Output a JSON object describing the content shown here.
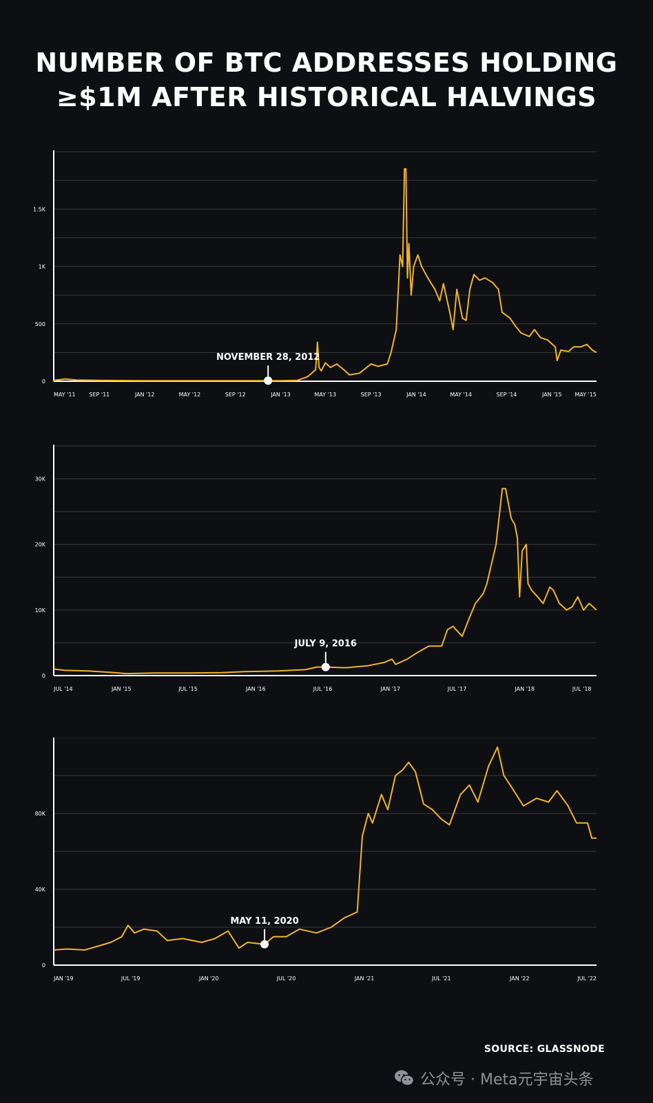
{
  "title": {
    "line1": "NUMBER OF BTC ADDRESSES HOLDING",
    "line2": "≥$1M AFTER HISTORICAL HALVINGS"
  },
  "source": "SOURCE: GLASSNODE",
  "watermark": {
    "icon": "wechat-icon",
    "text": "公众号 · Meta元宇宙头条"
  },
  "colors": {
    "series": "#f0b52b",
    "background": "#0e0f12",
    "grid": "#3a3b3f",
    "axis": "#ffffff"
  },
  "chart_data": [
    {
      "type": "line",
      "xlim": [
        "2011-05-01",
        "2015-05-01"
      ],
      "ylim": [
        0,
        2000
      ],
      "grid": true,
      "yticks": [
        {
          "value": 0,
          "label": "0"
        },
        {
          "value": 250,
          "label": ""
        },
        {
          "value": 500,
          "label": "500"
        },
        {
          "value": 750,
          "label": ""
        },
        {
          "value": 1000,
          "label": "1K"
        },
        {
          "value": 1250,
          "label": ""
        },
        {
          "value": 1500,
          "label": "1.5K"
        },
        {
          "value": 1750,
          "label": ""
        },
        {
          "value": 2000,
          "label": ""
        }
      ],
      "xticks": [
        {
          "date": "2011-05-01",
          "label": "MAY '11"
        },
        {
          "date": "2011-09-01",
          "label": "SEP '11"
        },
        {
          "date": "2012-01-01",
          "label": "JAN '12"
        },
        {
          "date": "2012-05-01",
          "label": "MAY '12"
        },
        {
          "date": "2012-09-01",
          "label": "SEP '12"
        },
        {
          "date": "2013-01-01",
          "label": "JAN '13"
        },
        {
          "date": "2013-05-01",
          "label": "MAY '13"
        },
        {
          "date": "2013-09-01",
          "label": "SEP '13"
        },
        {
          "date": "2014-01-01",
          "label": "JAN '14"
        },
        {
          "date": "2014-05-01",
          "label": "MAY '14"
        },
        {
          "date": "2014-09-01",
          "label": "SEP '14"
        },
        {
          "date": "2015-01-01",
          "label": "JAN '15"
        },
        {
          "date": "2015-05-01",
          "label": "MAY '15"
        }
      ],
      "annotation": {
        "date": "2012-11-28",
        "value": 5,
        "label": "NOVEMBER 28, 2012"
      },
      "series": [
        {
          "points": [
            [
              "2011-05-01",
              8
            ],
            [
              "2011-06-01",
              20
            ],
            [
              "2011-07-01",
              10
            ],
            [
              "2011-09-01",
              8
            ],
            [
              "2012-01-01",
              5
            ],
            [
              "2012-06-01",
              5
            ],
            [
              "2012-11-28",
              5
            ],
            [
              "2013-01-01",
              5
            ],
            [
              "2013-02-15",
              8
            ],
            [
              "2013-03-15",
              40
            ],
            [
              "2013-04-05",
              100
            ],
            [
              "2013-04-10",
              340
            ],
            [
              "2013-04-14",
              120
            ],
            [
              "2013-04-20",
              90
            ],
            [
              "2013-05-01",
              160
            ],
            [
              "2013-05-15",
              120
            ],
            [
              "2013-06-01",
              150
            ],
            [
              "2013-06-20",
              100
            ],
            [
              "2013-07-05",
              55
            ],
            [
              "2013-08-01",
              70
            ],
            [
              "2013-09-01",
              150
            ],
            [
              "2013-09-20",
              130
            ],
            [
              "2013-10-15",
              150
            ],
            [
              "2013-10-25",
              250
            ],
            [
              "2013-11-08",
              450
            ],
            [
              "2013-11-18",
              1100
            ],
            [
              "2013-11-25",
              1000
            ],
            [
              "2013-11-30",
              1850
            ],
            [
              "2013-12-04",
              1850
            ],
            [
              "2013-12-08",
              900
            ],
            [
              "2013-12-12",
              1200
            ],
            [
              "2013-12-18",
              750
            ],
            [
              "2013-12-25",
              1000
            ],
            [
              "2014-01-05",
              1100
            ],
            [
              "2014-01-15",
              1000
            ],
            [
              "2014-02-01",
              900
            ],
            [
              "2014-02-20",
              800
            ],
            [
              "2014-03-05",
              700
            ],
            [
              "2014-03-15",
              850
            ],
            [
              "2014-04-01",
              600
            ],
            [
              "2014-04-10",
              450
            ],
            [
              "2014-04-20",
              800
            ],
            [
              "2014-05-05",
              550
            ],
            [
              "2014-05-15",
              530
            ],
            [
              "2014-05-25",
              800
            ],
            [
              "2014-06-05",
              930
            ],
            [
              "2014-06-20",
              880
            ],
            [
              "2014-07-05",
              900
            ],
            [
              "2014-07-25",
              860
            ],
            [
              "2014-08-10",
              800
            ],
            [
              "2014-08-20",
              600
            ],
            [
              "2014-09-10",
              550
            ],
            [
              "2014-09-25",
              480
            ],
            [
              "2014-10-10",
              420
            ],
            [
              "2014-11-01",
              390
            ],
            [
              "2014-11-15",
              450
            ],
            [
              "2014-12-01",
              380
            ],
            [
              "2014-12-20",
              360
            ],
            [
              "2015-01-10",
              300
            ],
            [
              "2015-01-15",
              180
            ],
            [
              "2015-01-25",
              270
            ],
            [
              "2015-02-15",
              260
            ],
            [
              "2015-03-01",
              300
            ],
            [
              "2015-03-20",
              300
            ],
            [
              "2015-04-05",
              320
            ],
            [
              "2015-04-20",
              270
            ],
            [
              "2015-05-01",
              250
            ]
          ]
        }
      ]
    },
    {
      "type": "line",
      "xlim": [
        "2014-07-01",
        "2018-07-15"
      ],
      "ylim": [
        0,
        35000
      ],
      "grid": true,
      "yticks": [
        {
          "value": 0,
          "label": "0"
        },
        {
          "value": 5000,
          "label": ""
        },
        {
          "value": 10000,
          "label": "10K"
        },
        {
          "value": 15000,
          "label": ""
        },
        {
          "value": 20000,
          "label": "20K"
        },
        {
          "value": 25000,
          "label": ""
        },
        {
          "value": 30000,
          "label": "30K"
        },
        {
          "value": 35000,
          "label": ""
        }
      ],
      "xticks": [
        {
          "date": "2014-07-01",
          "label": "JUL '14"
        },
        {
          "date": "2015-01-01",
          "label": "JAN '15"
        },
        {
          "date": "2015-07-01",
          "label": "JUL '15"
        },
        {
          "date": "2016-01-01",
          "label": "JAN '16"
        },
        {
          "date": "2016-07-01",
          "label": "JUL '16"
        },
        {
          "date": "2017-01-01",
          "label": "JAN '17"
        },
        {
          "date": "2017-07-01",
          "label": "JUL '17"
        },
        {
          "date": "2018-01-01",
          "label": "JAN '18"
        },
        {
          "date": "2018-07-01",
          "label": "JUL '18"
        }
      ],
      "annotation": {
        "date": "2016-07-09",
        "value": 1300,
        "label": "JULY 9, 2016"
      },
      "series": [
        {
          "points": [
            [
              "2014-07-01",
              1000
            ],
            [
              "2014-08-01",
              800
            ],
            [
              "2014-10-01",
              700
            ],
            [
              "2014-12-01",
              500
            ],
            [
              "2015-01-15",
              300
            ],
            [
              "2015-04-01",
              400
            ],
            [
              "2015-07-01",
              400
            ],
            [
              "2015-10-01",
              450
            ],
            [
              "2015-12-01",
              600
            ],
            [
              "2016-03-01",
              700
            ],
            [
              "2016-05-15",
              900
            ],
            [
              "2016-06-15",
              1300
            ],
            [
              "2016-07-09",
              1300
            ],
            [
              "2016-09-01",
              1200
            ],
            [
              "2016-11-01",
              1500
            ],
            [
              "2016-12-15",
              2000
            ],
            [
              "2017-01-05",
              2500
            ],
            [
              "2017-01-15",
              1700
            ],
            [
              "2017-02-15",
              2500
            ],
            [
              "2017-03-15",
              3500
            ],
            [
              "2017-04-15",
              4500
            ],
            [
              "2017-05-20",
              4500
            ],
            [
              "2017-06-05",
              7000
            ],
            [
              "2017-06-20",
              7500
            ],
            [
              "2017-07-15",
              6000
            ],
            [
              "2017-08-05",
              9000
            ],
            [
              "2017-08-20",
              11000
            ],
            [
              "2017-09-10",
              12500
            ],
            [
              "2017-09-20",
              14000
            ],
            [
              "2017-10-15",
              20000
            ],
            [
              "2017-11-01",
              28500
            ],
            [
              "2017-11-10",
              28500
            ],
            [
              "2017-11-25",
              24000
            ],
            [
              "2017-12-05",
              23000
            ],
            [
              "2017-12-12",
              21000
            ],
            [
              "2017-12-18",
              12000
            ],
            [
              "2017-12-25",
              19000
            ],
            [
              "2018-01-05",
              20000
            ],
            [
              "2018-01-10",
              14000
            ],
            [
              "2018-01-20",
              13000
            ],
            [
              "2018-02-05",
              12000
            ],
            [
              "2018-02-20",
              11000
            ],
            [
              "2018-03-10",
              13500
            ],
            [
              "2018-03-20",
              13000
            ],
            [
              "2018-04-05",
              11000
            ],
            [
              "2018-04-25",
              10000
            ],
            [
              "2018-05-10",
              10500
            ],
            [
              "2018-05-25",
              12000
            ],
            [
              "2018-06-10",
              10000
            ],
            [
              "2018-06-25",
              11000
            ],
            [
              "2018-07-15",
              10000
            ]
          ]
        }
      ]
    },
    {
      "type": "line",
      "xlim": [
        "2019-01-01",
        "2022-07-01"
      ],
      "ylim": [
        0,
        120000
      ],
      "grid": true,
      "yticks": [
        {
          "value": 0,
          "label": "0"
        },
        {
          "value": 20000,
          "label": ""
        },
        {
          "value": 40000,
          "label": "40K"
        },
        {
          "value": 60000,
          "label": ""
        },
        {
          "value": 80000,
          "label": "80K"
        },
        {
          "value": 100000,
          "label": ""
        },
        {
          "value": 120000,
          "label": ""
        }
      ],
      "xticks": [
        {
          "date": "2019-01-01",
          "label": "JAN '19"
        },
        {
          "date": "2019-07-01",
          "label": "JUL '19"
        },
        {
          "date": "2020-01-01",
          "label": "JAN '20"
        },
        {
          "date": "2020-07-01",
          "label": "JUL '20"
        },
        {
          "date": "2021-01-01",
          "label": "JAN '21"
        },
        {
          "date": "2021-07-01",
          "label": "JUL '21"
        },
        {
          "date": "2022-01-01",
          "label": "JAN '22"
        },
        {
          "date": "2022-07-01",
          "label": "JUL '22"
        }
      ],
      "annotation": {
        "date": "2020-05-11",
        "value": 11000,
        "label": "MAY 11, 2020"
      },
      "series": [
        {
          "points": [
            [
              "2019-01-01",
              8000
            ],
            [
              "2019-02-01",
              8500
            ],
            [
              "2019-03-15",
              8000
            ],
            [
              "2019-04-15",
              10000
            ],
            [
              "2019-05-15",
              12000
            ],
            [
              "2019-06-10",
              15000
            ],
            [
              "2019-06-25",
              21000
            ],
            [
              "2019-07-10",
              17000
            ],
            [
              "2019-08-01",
              19000
            ],
            [
              "2019-09-01",
              18000
            ],
            [
              "2019-09-25",
              13000
            ],
            [
              "2019-11-01",
              14000
            ],
            [
              "2019-12-15",
              12000
            ],
            [
              "2020-01-15",
              14000
            ],
            [
              "2020-02-15",
              18000
            ],
            [
              "2020-03-12",
              9000
            ],
            [
              "2020-04-01",
              12000
            ],
            [
              "2020-05-11",
              11000
            ],
            [
              "2020-06-01",
              15000
            ],
            [
              "2020-07-01",
              15000
            ],
            [
              "2020-08-01",
              19000
            ],
            [
              "2020-09-10",
              17000
            ],
            [
              "2020-10-15",
              20000
            ],
            [
              "2020-11-15",
              25000
            ],
            [
              "2020-12-15",
              28000
            ],
            [
              "2020-12-27",
              68000
            ],
            [
              "2021-01-10",
              80000
            ],
            [
              "2021-01-20",
              75000
            ],
            [
              "2021-02-10",
              90000
            ],
            [
              "2021-02-25",
              82000
            ],
            [
              "2021-03-15",
              100000
            ],
            [
              "2021-04-01",
              103000
            ],
            [
              "2021-04-15",
              107000
            ],
            [
              "2021-05-01",
              102000
            ],
            [
              "2021-05-20",
              85000
            ],
            [
              "2021-06-10",
              82000
            ],
            [
              "2021-07-01",
              77000
            ],
            [
              "2021-07-20",
              74000
            ],
            [
              "2021-08-15",
              90000
            ],
            [
              "2021-09-05",
              95000
            ],
            [
              "2021-09-25",
              86000
            ],
            [
              "2021-10-20",
              105000
            ],
            [
              "2021-11-10",
              115000
            ],
            [
              "2021-11-25",
              100000
            ],
            [
              "2021-12-10",
              95000
            ],
            [
              "2022-01-10",
              84000
            ],
            [
              "2022-02-10",
              88000
            ],
            [
              "2022-03-10",
              86000
            ],
            [
              "2022-03-30",
              92000
            ],
            [
              "2022-04-25",
              84000
            ],
            [
              "2022-05-15",
              75000
            ],
            [
              "2022-06-10",
              75000
            ],
            [
              "2022-06-20",
              67000
            ],
            [
              "2022-07-01",
              67000
            ]
          ]
        }
      ]
    }
  ]
}
